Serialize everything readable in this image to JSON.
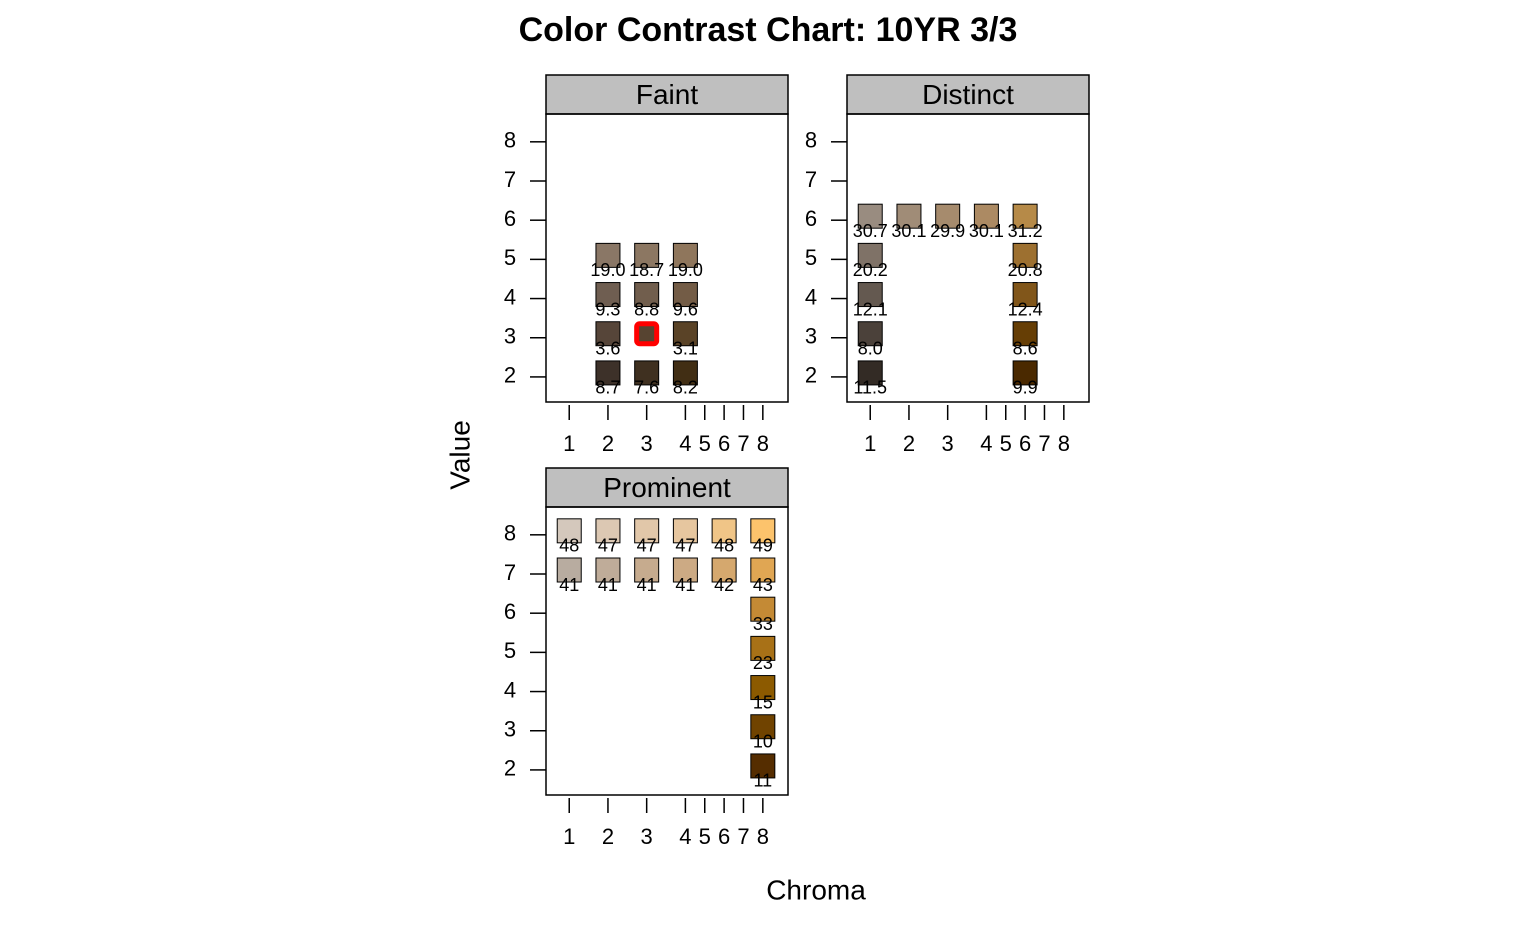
{
  "chart_data": {
    "type": "scatter",
    "title": "Color Contrast Chart: 10YR 3/3",
    "x_label": "Chroma",
    "y_label": "Value",
    "xlim": [
      0.4,
      9.3
    ],
    "ylim": [
      1.36,
      8.71
    ],
    "xticks": [
      1,
      2,
      3,
      4,
      5,
      6,
      7,
      8
    ],
    "yticks": [
      2,
      3,
      4,
      5,
      6,
      7,
      8
    ],
    "panels": [
      {
        "name": "Faint",
        "x": [
          2,
          3,
          4,
          2,
          3,
          4,
          2,
          4,
          2,
          3,
          4
        ],
        "y": [
          5,
          5,
          5,
          4,
          4,
          4,
          3,
          3,
          2,
          2,
          2
        ],
        "colors": [
          "#8a7766",
          "#8c7762",
          "#8f765c",
          "#6f5e51",
          "#715e4d",
          "#735c46",
          "#564539",
          "#5a4327",
          "#3d3129",
          "#3f3020",
          "#412e14"
        ],
        "values": [
          19.0,
          18.7,
          19.0,
          9.3,
          8.8,
          9.6,
          3.6,
          3.1,
          8.7,
          7.6,
          8.2
        ],
        "value_labels": [
          "19.0",
          "18.7",
          "19.0",
          "9.3",
          "8.8",
          "9.6",
          "3.6",
          "3.1",
          "8.7",
          "7.6",
          "8.2"
        ],
        "query": {
          "x": 3,
          "y": 3,
          "color": "#574431",
          "outline": "#ff0000"
        }
      },
      {
        "name": "Distinct",
        "x": [
          1,
          2,
          3,
          4,
          6,
          1,
          6,
          1,
          6,
          1,
          6,
          1,
          6
        ],
        "y": [
          6,
          6,
          6,
          6,
          6,
          5,
          5,
          4,
          4,
          3,
          3,
          2,
          2
        ],
        "colors": [
          "#998c80",
          "#a08c77",
          "#a68b6d",
          "#ac8a63",
          "#b68a48",
          "#7f7267",
          "#9d7030",
          "#645950",
          "#81561a",
          "#4b413a",
          "#663e05",
          "#332b25",
          "#4a2900"
        ],
        "values": [
          30.7,
          30.1,
          29.9,
          30.1,
          31.2,
          20.2,
          20.8,
          12.1,
          12.4,
          8.0,
          8.6,
          11.5,
          9.9
        ],
        "value_labels": [
          "30.7",
          "30.1",
          "29.9",
          "30.1",
          "31.2",
          "20.2",
          "20.8",
          "12.1",
          "12.4",
          "8.0",
          "8.6",
          "11.5",
          "9.9"
        ]
      },
      {
        "name": "Prominent",
        "x": [
          1,
          2,
          3,
          4,
          6,
          8,
          1,
          2,
          3,
          4,
          6,
          8,
          8,
          8,
          8,
          8,
          8
        ],
        "y": [
          8,
          8,
          8,
          8,
          8,
          8,
          7,
          7,
          7,
          7,
          7,
          7,
          6,
          5,
          4,
          3,
          2
        ],
        "colors": [
          "#d4c8bc",
          "#dcc8b3",
          "#e1c7a9",
          "#e6c69f",
          "#f0c587",
          "#fcc36c",
          "#b8aca0",
          "#bfac99",
          "#c6ab8e",
          "#ccaa84",
          "#d5a86e",
          "#e0a653",
          "#c48a35",
          "#a87117",
          "#8c5a00",
          "#704300",
          "#552d00"
        ],
        "values": [
          48,
          47,
          47,
          47,
          48,
          49,
          41,
          41,
          41,
          41,
          42,
          43,
          33,
          23,
          15,
          10,
          11
        ]
      }
    ]
  }
}
